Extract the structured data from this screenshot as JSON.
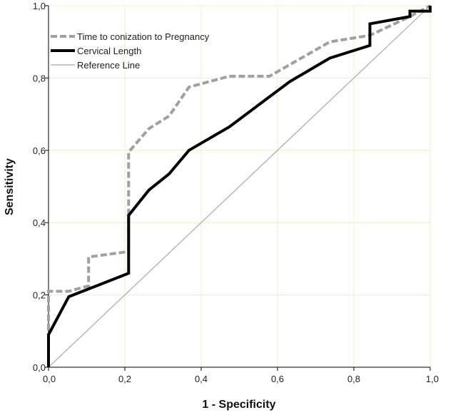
{
  "chart_data": {
    "type": "line",
    "title": "",
    "xlabel": "1 - Specificity",
    "ylabel": "Sensitivity",
    "xlim": [
      0,
      1
    ],
    "ylim": [
      0,
      1
    ],
    "grid": true,
    "legend_position": "top-left",
    "x_ticks": [
      {
        "value": 0,
        "label": "0,0"
      },
      {
        "value": 0.2,
        "label": "0,2"
      },
      {
        "value": 0.4,
        "label": "0,4"
      },
      {
        "value": 0.6,
        "label": "0,6"
      },
      {
        "value": 0.8,
        "label": "0,8"
      },
      {
        "value": 1,
        "label": "1,0"
      }
    ],
    "y_ticks": [
      {
        "value": 0,
        "label": "0,0"
      },
      {
        "value": 0.2,
        "label": "0,2"
      },
      {
        "value": 0.4,
        "label": "0,4"
      },
      {
        "value": 0.6,
        "label": "0,6"
      },
      {
        "value": 0.8,
        "label": "0,8"
      },
      {
        "value": 1,
        "label": "1,0"
      }
    ],
    "series": [
      {
        "name": "Time to conization to Pregnancy",
        "style": "dashed",
        "color": "#a0a0a0",
        "x": [
          0,
          0,
          0.053,
          0.105,
          0.105,
          0.21,
          0.21,
          0.263,
          0.316,
          0.368,
          0.474,
          0.579,
          0.737,
          0.842,
          0.947,
          1
        ],
        "y": [
          0,
          0.21,
          0.21,
          0.225,
          0.305,
          0.32,
          0.595,
          0.66,
          0.695,
          0.775,
          0.805,
          0.805,
          0.9,
          0.918,
          0.97,
          1
        ]
      },
      {
        "name": "Cervical Length",
        "style": "solid-thick",
        "color": "#000000",
        "x": [
          0,
          0,
          0.053,
          0.21,
          0.21,
          0.263,
          0.316,
          0.368,
          0.474,
          0.632,
          0.737,
          0.842,
          0.842,
          0.947,
          0.947,
          1,
          1
        ],
        "y": [
          0,
          0.09,
          0.195,
          0.26,
          0.42,
          0.49,
          0.535,
          0.6,
          0.665,
          0.79,
          0.855,
          0.89,
          0.95,
          0.97,
          0.985,
          0.985,
          1
        ]
      },
      {
        "name": "Reference Line",
        "style": "solid-thin",
        "color": "#a8a8a8",
        "x": [
          0,
          1
        ],
        "y": [
          0,
          1
        ]
      }
    ]
  }
}
